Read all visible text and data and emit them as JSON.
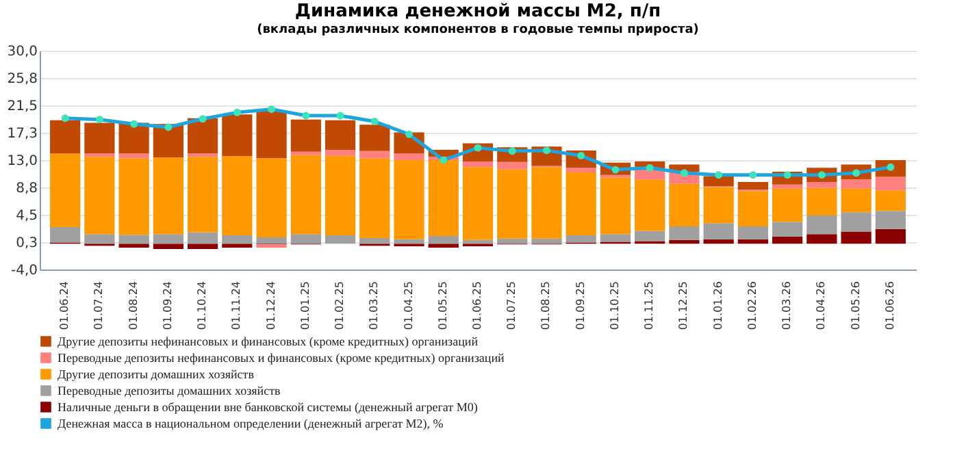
{
  "chart_data": {
    "type": "bar",
    "stacked": true,
    "title": "Динамика денежной массы М2, п/п",
    "subtitle": "(вклады различных компонентов в годовые темпы прироста)",
    "categories": [
      "01.06.24",
      "01.07.24",
      "01.08.24",
      "01.09.24",
      "01.10.24",
      "01.11.24",
      "01.12.24",
      "01.01.25",
      "01.02.25",
      "01.03.25",
      "01.04.25",
      "01.05.25",
      "01.06.25",
      "01.07.25",
      "01.08.25",
      "01.09.25",
      "01.10.25",
      "01.11.25",
      "01.12.25",
      "01.01.26",
      "01.02.26",
      "01.03.26",
      "01.04.26",
      "01.05.26",
      "01.06.26"
    ],
    "series": [
      {
        "name": "Наличные деньги в обращении вне банковской системы (денежный агрегат М0)",
        "color": "#8b0000",
        "values": [
          0.2,
          -0.3,
          -0.6,
          -0.8,
          -0.8,
          -0.6,
          -0.1,
          -0.1,
          0,
          -0.3,
          -0.4,
          -0.6,
          -0.4,
          -0.1,
          -0.1,
          0.2,
          0.3,
          0.4,
          0.6,
          0.7,
          0.7,
          1.1,
          1.5,
          1.9,
          2.3
        ]
      },
      {
        "name": "Переводные депозиты домашних хозяйств",
        "color": "#a0a0a0",
        "values": [
          2.4,
          1.5,
          1.4,
          1.5,
          1.8,
          1.3,
          1.0,
          1.5,
          1.3,
          0.9,
          0.7,
          1.2,
          0.6,
          0.8,
          0.8,
          1.1,
          1.2,
          1.6,
          2.1,
          2.5,
          2.0,
          2.3,
          2.9,
          3.0,
          2.8
        ]
      },
      {
        "name": "Другие депозиты домашних хозяйств",
        "color": "#ff9900",
        "values": [
          11.4,
          12.0,
          11.9,
          11.9,
          11.7,
          12.3,
          12.3,
          12.3,
          12.4,
          12.4,
          12.3,
          11.8,
          11.3,
          10.8,
          11.1,
          9.8,
          8.8,
          8.0,
          6.6,
          5.6,
          5.5,
          5.2,
          4.3,
          3.7,
          3.2
        ]
      },
      {
        "name": "Переводные депозиты нефинансовых и финансовых (кроме кредитных)  организаций",
        "color": "#ff7f7f",
        "values": [
          0,
          0.5,
          0.7,
          0,
          0.5,
          0,
          -0.5,
          0.5,
          0.9,
          1.1,
          1.0,
          0.5,
          0.9,
          1.1,
          0.2,
          0.7,
          0.4,
          1.7,
          1.9,
          0.1,
          0.2,
          0.6,
          0.9,
          1.4,
          2.1
        ]
      },
      {
        "name": "Другие депозиты нефинансовых и финансовых (кроме кредитных)  организаций",
        "color": "#c04a04",
        "values": [
          5.2,
          4.8,
          4.8,
          5.2,
          5.5,
          6.5,
          7.3,
          5.0,
          4.6,
          4.1,
          3.3,
          1.1,
          2.8,
          2.3,
          3.0,
          2.7,
          1.9,
          1.1,
          1.1,
          1.6,
          1.2,
          2.0,
          2.2,
          2.3,
          2.6
        ]
      },
      {
        "name": "Денежная масса в национальном  определении  (денежный агрегат  М2), %",
        "type": "line",
        "color": "#1ea5dc",
        "marker": "circle",
        "values": [
          19.5,
          19.3,
          18.6,
          18.1,
          19.4,
          20.4,
          20.9,
          19.9,
          19.9,
          19.0,
          17.0,
          13.0,
          14.9,
          14.4,
          14.5,
          13.7,
          11.5,
          11.8,
          11.0,
          10.7,
          10.7,
          10.7,
          10.7,
          11.0,
          11.9
        ]
      }
    ],
    "ylim": [
      -4,
      30
    ],
    "yticks": [
      {
        "value": -4,
        "label": "-4,0"
      },
      {
        "value": 0.25,
        "label": "0,3"
      },
      {
        "value": 4.5,
        "label": "4,5"
      },
      {
        "value": 8.75,
        "label": "8,8"
      },
      {
        "value": 13,
        "label": "13,0"
      },
      {
        "value": 17.25,
        "label": "17,3"
      },
      {
        "value": 21.5,
        "label": "21,5"
      },
      {
        "value": 25.75,
        "label": "25,8"
      },
      {
        "value": 30,
        "label": "30,0"
      }
    ],
    "grid": true,
    "legend": "bottom"
  }
}
